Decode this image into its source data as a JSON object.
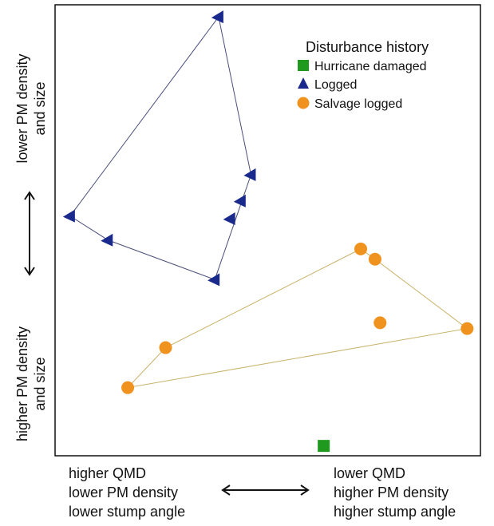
{
  "chart_data": {
    "type": "scatter",
    "title": "",
    "xlim": [
      0,
      100
    ],
    "ylim": [
      0,
      100
    ],
    "grid": false,
    "legend": {
      "title": "Disturbance history",
      "placement": "top-right",
      "entries": [
        {
          "label": "Hurricane damaged",
          "marker": "square",
          "color": "#1f9a1f"
        },
        {
          "label": "Logged",
          "marker": "triangle",
          "color": "#1a2a8c"
        },
        {
          "label": "Salvage logged",
          "marker": "circle",
          "color": "#f0921e"
        }
      ]
    },
    "x_axis": {
      "left_label": [
        "higher QMD",
        "lower PM density",
        "lower stump angle"
      ],
      "right_label": [
        "lower QMD",
        "higher PM density",
        "higher stump angle"
      ],
      "double_arrow": true
    },
    "y_axis": {
      "top_label": [
        "lower PM density",
        "and size"
      ],
      "bottom_label": [
        "higher PM density",
        "and size"
      ],
      "double_arrow": true
    },
    "series": [
      {
        "name": "Hurricane damaged",
        "marker": "square",
        "color": "#1f9a1f",
        "hull_color": "",
        "points": [
          [
            63.5,
            1.5
          ]
        ],
        "hull": []
      },
      {
        "name": "Logged",
        "marker": "triangle",
        "color": "#1a2a8c",
        "hull_color": "#4a4f7a",
        "points": [
          [
            38.5,
            98.0
          ],
          [
            46.2,
            62.5
          ],
          [
            43.8,
            56.6
          ],
          [
            41.3,
            52.6
          ],
          [
            3.2,
            53.2
          ],
          [
            12.2,
            47.8
          ],
          [
            37.6,
            38.9
          ]
        ],
        "hull": [
          0,
          1,
          6,
          5,
          4
        ]
      },
      {
        "name": "Salvage logged",
        "marker": "circle",
        "color": "#f0921e",
        "hull_color": "#c9b26a",
        "points": [
          [
            72.3,
            45.8
          ],
          [
            75.7,
            43.5
          ],
          [
            76.9,
            29.2
          ],
          [
            97.6,
            27.9
          ],
          [
            25.9,
            23.6
          ],
          [
            16.9,
            14.6
          ]
        ],
        "hull": [
          0,
          1,
          3,
          5,
          4
        ]
      }
    ]
  }
}
